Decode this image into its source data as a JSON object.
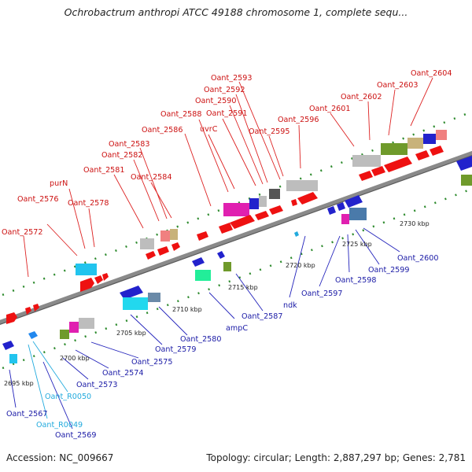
{
  "title": "Ochrobactrum anthropi ATCC 49188 chromosome 1, complete sequ...",
  "footer": {
    "accession": "Accession: NC_009667",
    "topology": "Topology: circular; Length: 2,887,297 bp; Genes: 2,781"
  },
  "colors": {
    "forward_label": "#cc1111",
    "reverse_label": "#1a1aa6",
    "rna_label": "#22aadd",
    "backbone": "#8a8a8a"
  },
  "kbp_ticks": [
    {
      "text": "2695 kbp"
    },
    {
      "text": "2700 kbp"
    },
    {
      "text": "2705 kbp"
    },
    {
      "text": "2710 kbp"
    },
    {
      "text": "2715 kbp"
    },
    {
      "text": "2720 kbp"
    },
    {
      "text": "2725 kbp"
    },
    {
      "text": "2730 kbp"
    }
  ],
  "forward_labels": [
    {
      "text": "Oant_2572"
    },
    {
      "text": "Oant_2576"
    },
    {
      "text": "purN"
    },
    {
      "text": "Oant_2578"
    },
    {
      "text": "Oant_2581"
    },
    {
      "text": "Oant_2582"
    },
    {
      "text": "Oant_2583"
    },
    {
      "text": "Oant_2584"
    },
    {
      "text": "Oant_2586"
    },
    {
      "text": "Oant_2588"
    },
    {
      "text": "uvrC"
    },
    {
      "text": "Oant_2591"
    },
    {
      "text": "Oant_2590"
    },
    {
      "text": "Oant_2592"
    },
    {
      "text": "Oant_2593"
    },
    {
      "text": "Oant_2595"
    },
    {
      "text": "Oant_2596"
    },
    {
      "text": "Oant_2601"
    },
    {
      "text": "Oant_2602"
    },
    {
      "text": "Oant_2603"
    },
    {
      "text": "Oant_2604"
    }
  ],
  "reverse_labels": [
    {
      "text": "Oant_2567"
    },
    {
      "text": "Oant_2569"
    },
    {
      "text": "Oant_2573"
    },
    {
      "text": "Oant_2574"
    },
    {
      "text": "Oant_2575"
    },
    {
      "text": "Oant_2579"
    },
    {
      "text": "Oant_2580"
    },
    {
      "text": "ampC"
    },
    {
      "text": "Oant_2587"
    },
    {
      "text": "ndk"
    },
    {
      "text": "Oant_2597"
    },
    {
      "text": "Oant_2598"
    },
    {
      "text": "Oant_2599"
    },
    {
      "text": "Oant_2600"
    }
  ],
  "rna_labels": [
    {
      "text": "Oant_R0050"
    },
    {
      "text": "Oant_R0049"
    }
  ]
}
